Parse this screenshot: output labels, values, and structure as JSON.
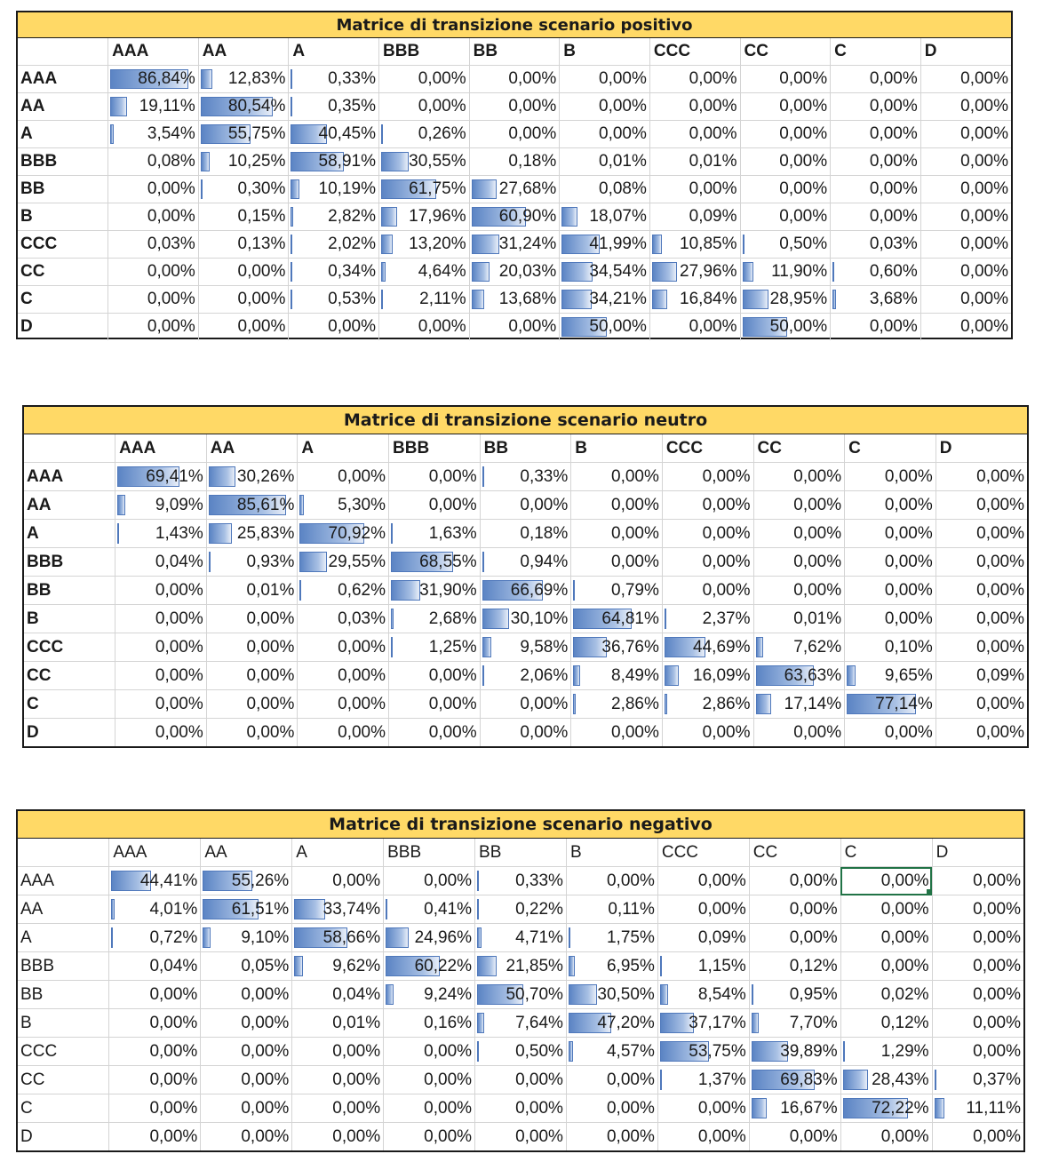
{
  "columns": [
    "AAA",
    "AA",
    "A",
    "BBB",
    "BB",
    "B",
    "CCC",
    "CC",
    "C",
    "D"
  ],
  "tables": [
    {
      "title": "Matrice di transizione scenario positivo",
      "rows": [
        {
          "label": "AAA",
          "values": [
            "86,84%",
            "12,83%",
            "0,33%",
            "0,00%",
            "0,00%",
            "0,00%",
            "0,00%",
            "0,00%",
            "0,00%",
            "0,00%"
          ]
        },
        {
          "label": "AA",
          "values": [
            "19,11%",
            "80,54%",
            "0,35%",
            "0,00%",
            "0,00%",
            "0,00%",
            "0,00%",
            "0,00%",
            "0,00%",
            "0,00%"
          ]
        },
        {
          "label": "A",
          "values": [
            "3,54%",
            "55,75%",
            "40,45%",
            "0,26%",
            "0,00%",
            "0,00%",
            "0,00%",
            "0,00%",
            "0,00%",
            "0,00%"
          ]
        },
        {
          "label": "BBB",
          "values": [
            "0,08%",
            "10,25%",
            "58,91%",
            "30,55%",
            "0,18%",
            "0,01%",
            "0,01%",
            "0,00%",
            "0,00%",
            "0,00%"
          ]
        },
        {
          "label": "BB",
          "values": [
            "0,00%",
            "0,30%",
            "10,19%",
            "61,75%",
            "27,68%",
            "0,08%",
            "0,00%",
            "0,00%",
            "0,00%",
            "0,00%"
          ]
        },
        {
          "label": "B",
          "values": [
            "0,00%",
            "0,15%",
            "2,82%",
            "17,96%",
            "60,90%",
            "18,07%",
            "0,09%",
            "0,00%",
            "0,00%",
            "0,00%"
          ]
        },
        {
          "label": "CCC",
          "values": [
            "0,03%",
            "0,13%",
            "2,02%",
            "13,20%",
            "31,24%",
            "41,99%",
            "10,85%",
            "0,50%",
            "0,03%",
            "0,00%"
          ]
        },
        {
          "label": "CC",
          "values": [
            "0,00%",
            "0,00%",
            "0,34%",
            "4,64%",
            "20,03%",
            "34,54%",
            "27,96%",
            "11,90%",
            "0,60%",
            "0,00%"
          ]
        },
        {
          "label": "C",
          "values": [
            "0,00%",
            "0,00%",
            "0,53%",
            "2,11%",
            "13,68%",
            "34,21%",
            "16,84%",
            "28,95%",
            "3,68%",
            "0,00%"
          ]
        },
        {
          "label": "D",
          "values": [
            "0,00%",
            "0,00%",
            "0,00%",
            "0,00%",
            "0,00%",
            "50,00%",
            "0,00%",
            "50,00%",
            "0,00%",
            "0,00%"
          ]
        }
      ]
    },
    {
      "title": "Matrice di transizione scenario neutro",
      "rows": [
        {
          "label": "AAA",
          "values": [
            "69,41%",
            "30,26%",
            "0,00%",
            "0,00%",
            "0,33%",
            "0,00%",
            "0,00%",
            "0,00%",
            "0,00%",
            "0,00%"
          ]
        },
        {
          "label": "AA",
          "values": [
            "9,09%",
            "85,61%",
            "5,30%",
            "0,00%",
            "0,00%",
            "0,00%",
            "0,00%",
            "0,00%",
            "0,00%",
            "0,00%"
          ]
        },
        {
          "label": "A",
          "values": [
            "1,43%",
            "25,83%",
            "70,92%",
            "1,63%",
            "0,18%",
            "0,00%",
            "0,00%",
            "0,00%",
            "0,00%",
            "0,00%"
          ]
        },
        {
          "label": "BBB",
          "values": [
            "0,04%",
            "0,93%",
            "29,55%",
            "68,55%",
            "0,94%",
            "0,00%",
            "0,00%",
            "0,00%",
            "0,00%",
            "0,00%"
          ]
        },
        {
          "label": "BB",
          "values": [
            "0,00%",
            "0,01%",
            "0,62%",
            "31,90%",
            "66,69%",
            "0,79%",
            "0,00%",
            "0,00%",
            "0,00%",
            "0,00%"
          ]
        },
        {
          "label": "B",
          "values": [
            "0,00%",
            "0,00%",
            "0,03%",
            "2,68%",
            "30,10%",
            "64,81%",
            "2,37%",
            "0,01%",
            "0,00%",
            "0,00%"
          ]
        },
        {
          "label": "CCC",
          "values": [
            "0,00%",
            "0,00%",
            "0,00%",
            "1,25%",
            "9,58%",
            "36,76%",
            "44,69%",
            "7,62%",
            "0,10%",
            "0,00%"
          ]
        },
        {
          "label": "CC",
          "values": [
            "0,00%",
            "0,00%",
            "0,00%",
            "0,00%",
            "2,06%",
            "8,49%",
            "16,09%",
            "63,63%",
            "9,65%",
            "0,09%"
          ]
        },
        {
          "label": "C",
          "values": [
            "0,00%",
            "0,00%",
            "0,00%",
            "0,00%",
            "0,00%",
            "2,86%",
            "2,86%",
            "17,14%",
            "77,14%",
            "0,00%"
          ]
        },
        {
          "label": "D",
          "values": [
            "0,00%",
            "0,00%",
            "0,00%",
            "0,00%",
            "0,00%",
            "0,00%",
            "0,00%",
            "0,00%",
            "0,00%",
            "0,00%"
          ]
        }
      ]
    },
    {
      "title": "Matrice di transizione scenario negativo",
      "rows": [
        {
          "label": "AAA",
          "values": [
            "44,41%",
            "55,26%",
            "0,00%",
            "0,00%",
            "0,33%",
            "0,00%",
            "0,00%",
            "0,00%",
            "0,00%",
            "0,00%"
          ]
        },
        {
          "label": "AA",
          "values": [
            "4,01%",
            "61,51%",
            "33,74%",
            "0,41%",
            "0,22%",
            "0,11%",
            "0,00%",
            "0,00%",
            "0,00%",
            "0,00%"
          ]
        },
        {
          "label": "A",
          "values": [
            "0,72%",
            "9,10%",
            "58,66%",
            "24,96%",
            "4,71%",
            "1,75%",
            "0,09%",
            "0,00%",
            "0,00%",
            "0,00%"
          ]
        },
        {
          "label": "BBB",
          "values": [
            "0,04%",
            "0,05%",
            "9,62%",
            "60,22%",
            "21,85%",
            "6,95%",
            "1,15%",
            "0,12%",
            "0,00%",
            "0,00%"
          ]
        },
        {
          "label": "BB",
          "values": [
            "0,00%",
            "0,00%",
            "0,04%",
            "9,24%",
            "50,70%",
            "30,50%",
            "8,54%",
            "0,95%",
            "0,02%",
            "0,00%"
          ]
        },
        {
          "label": "B",
          "values": [
            "0,00%",
            "0,00%",
            "0,01%",
            "0,16%",
            "7,64%",
            "47,20%",
            "37,17%",
            "7,70%",
            "0,12%",
            "0,00%"
          ]
        },
        {
          "label": "CCC",
          "values": [
            "0,00%",
            "0,00%",
            "0,00%",
            "0,00%",
            "0,50%",
            "4,57%",
            "53,75%",
            "39,89%",
            "1,29%",
            "0,00%"
          ]
        },
        {
          "label": "CC",
          "values": [
            "0,00%",
            "0,00%",
            "0,00%",
            "0,00%",
            "0,00%",
            "0,00%",
            "1,37%",
            "69,83%",
            "28,43%",
            "0,37%"
          ]
        },
        {
          "label": "C",
          "values": [
            "0,00%",
            "0,00%",
            "0,00%",
            "0,00%",
            "0,00%",
            "0,00%",
            "0,00%",
            "16,67%",
            "72,22%",
            "11,11%"
          ]
        },
        {
          "label": "D",
          "values": [
            "0,00%",
            "0,00%",
            "0,00%",
            "0,00%",
            "0,00%",
            "0,00%",
            "0,00%",
            "0,00%",
            "0,00%",
            "0,00%"
          ]
        }
      ]
    }
  ],
  "selected_cell": {
    "table": 2,
    "row": 0,
    "col": 8
  }
}
